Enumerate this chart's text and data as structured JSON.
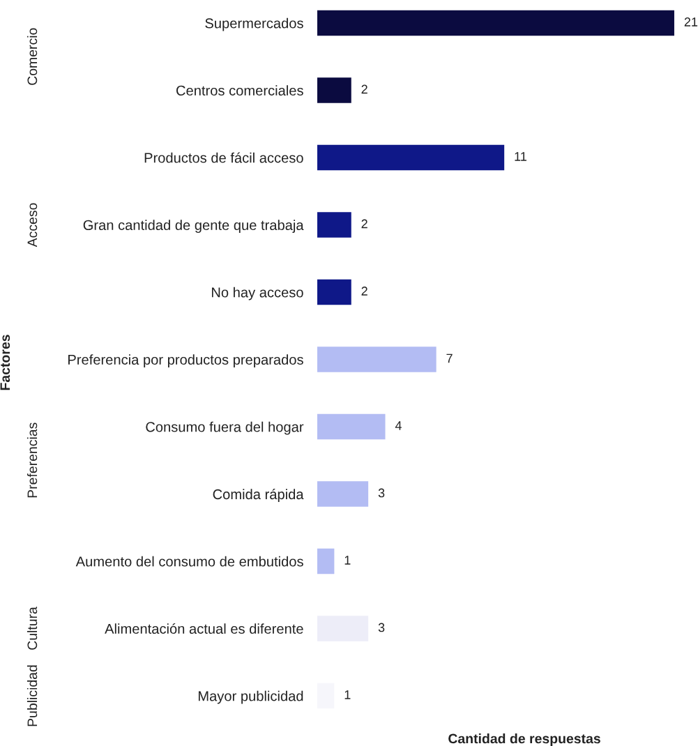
{
  "chart_data": {
    "type": "bar",
    "orientation": "horizontal",
    "xlabel": "Cantidad de respuestas",
    "ylabel": "Factores",
    "categories": [
      "Supermercados",
      "Centros comerciales",
      "Productos de fácil acceso",
      "Gran cantidad de gente que trabaja",
      "No hay acceso",
      "Preferencia por productos preparados",
      "Consumo fuera del hogar",
      "Comida rápida",
      "Aumento del consumo de embutidos",
      "Alimentación actual es diferente",
      "Mayor publicidad"
    ],
    "values": [
      21,
      2,
      11,
      2,
      2,
      7,
      4,
      3,
      1,
      3,
      1
    ],
    "colors": [
      "#0b0b40",
      "#0b0b40",
      "#0f1888",
      "#0f1888",
      "#0f1888",
      "#b3bcf3",
      "#b3bcf3",
      "#b3bcf3",
      "#b3bcf3",
      "#ededf8",
      "#f6f6fb"
    ],
    "data_labels": true,
    "tick_labels": "y",
    "annotations": [
      "Comercio",
      "Acceso",
      "Preferencias",
      "Cultura",
      "Publicidad"
    ]
  }
}
